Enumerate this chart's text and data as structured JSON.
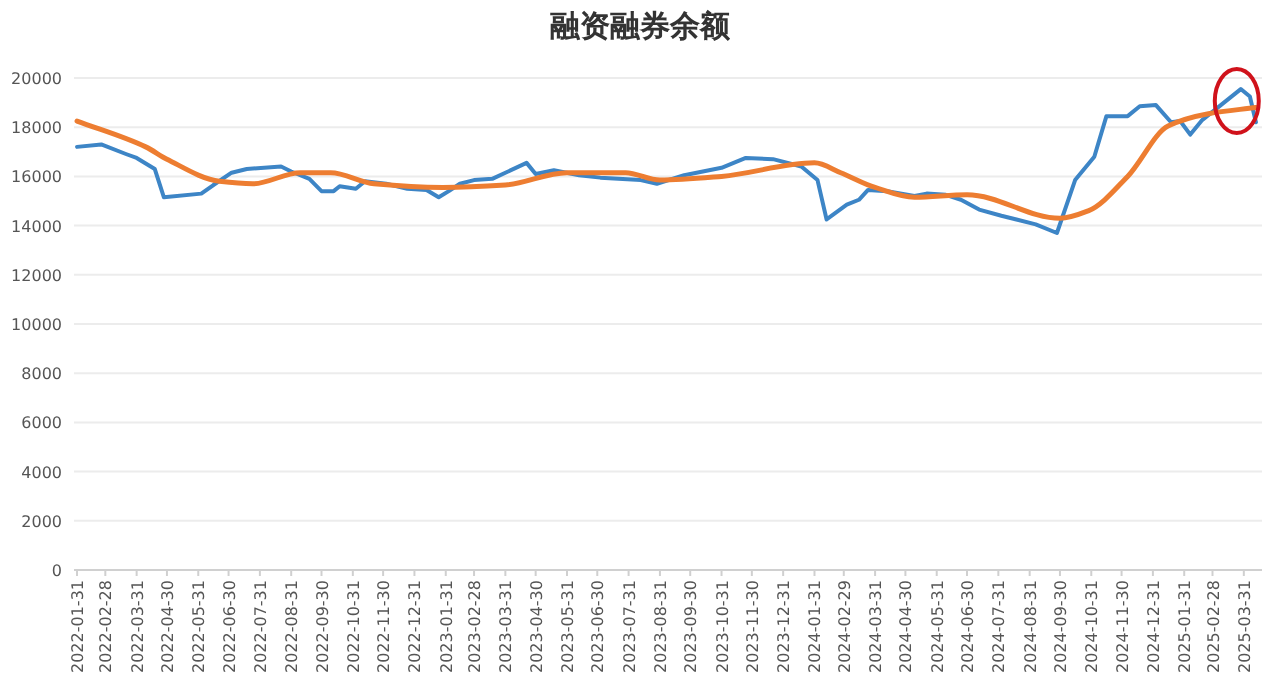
{
  "chart_data": {
    "type": "line",
    "title": "融资融券余额",
    "xlim": [
      "2022-01-28",
      "2025-04-18"
    ],
    "xticks": [
      "2022-01-31",
      "2022-02-28",
      "2022-03-31",
      "2022-04-30",
      "2022-05-31",
      "2022-06-30",
      "2022-07-31",
      "2022-08-31",
      "2022-09-30",
      "2022-10-31",
      "2022-11-30",
      "2022-12-31",
      "2023-01-31",
      "2023-02-28",
      "2023-03-31",
      "2023-04-30",
      "2023-05-31",
      "2023-06-30",
      "2023-07-31",
      "2023-08-31",
      "2023-09-30",
      "2023-10-31",
      "2023-11-30",
      "2023-12-31",
      "2024-01-31",
      "2024-02-29",
      "2024-03-31",
      "2024-04-30",
      "2024-05-31",
      "2024-06-30",
      "2024-07-31",
      "2024-08-31",
      "2024-09-30",
      "2024-10-31",
      "2024-11-30",
      "2024-12-31",
      "2025-01-31",
      "2025-02-28",
      "2025-03-31"
    ],
    "ylim": [
      0,
      20000
    ],
    "yticks": [
      0,
      2000,
      4000,
      6000,
      8000,
      10000,
      12000,
      14000,
      16000,
      18000,
      20000
    ],
    "grid": "y",
    "series": [
      {
        "color": "#3d85c6",
        "x": [
          "2022-01-31",
          "2022-02-24",
          "2022-03-21",
          "2022-03-31",
          "2022-04-18",
          "2022-04-27",
          "2022-06-03",
          "2022-06-15",
          "2022-07-03",
          "2022-07-18",
          "2022-08-21",
          "2022-08-31",
          "2022-09-18",
          "2022-09-30",
          "2022-10-12",
          "2022-10-18",
          "2022-11-03",
          "2022-11-12",
          "2022-12-03",
          "2022-12-24",
          "2023-01-12",
          "2023-01-24",
          "2023-02-03",
          "2023-02-14",
          "2023-02-28",
          "2023-03-18",
          "2023-04-21",
          "2023-04-30",
          "2023-05-18",
          "2023-06-12",
          "2023-07-03",
          "2023-08-12",
          "2023-08-28",
          "2023-09-24",
          "2023-10-31",
          "2023-11-24",
          "2023-12-21",
          "2024-01-18",
          "2024-02-03",
          "2024-02-12",
          "2024-03-03",
          "2024-03-15",
          "2024-03-24",
          "2024-04-12",
          "2024-05-09",
          "2024-05-21",
          "2024-06-09",
          "2024-06-24",
          "2024-07-12",
          "2024-08-03",
          "2024-09-06",
          "2024-09-27",
          "2024-10-15",
          "2024-11-03",
          "2024-11-15",
          "2024-12-06",
          "2024-12-18",
          "2025-01-03",
          "2025-01-18",
          "2025-01-27",
          "2025-02-06",
          "2025-02-18",
          "2025-03-28",
          "2025-04-06",
          "2025-04-12"
        ],
        "values": [
          17200,
          17300,
          16900,
          16750,
          16300,
          15150,
          15300,
          15650,
          16150,
          16300,
          16400,
          16200,
          15900,
          15400,
          15400,
          15600,
          15500,
          15800,
          15700,
          15500,
          15450,
          15150,
          15400,
          15700,
          15850,
          15900,
          16550,
          16100,
          16250,
          16050,
          15950,
          15850,
          15700,
          16050,
          16350,
          16750,
          16700,
          16400,
          15850,
          14250,
          14850,
          15050,
          15450,
          15400,
          15200,
          15300,
          15250,
          15050,
          14650,
          14400,
          14050,
          13700,
          15850,
          16800,
          18450,
          18450,
          18850,
          18900,
          18200,
          18250,
          17700,
          18300,
          19550,
          19250,
          18200
        ]
      },
      {
        "color": "#ed7d31",
        "x": [
          "2022-01-31",
          "2022-04-09",
          "2022-04-30",
          "2022-06-21",
          "2022-07-24",
          "2022-09-09",
          "2022-10-09",
          "2022-11-21",
          "2023-01-28",
          "2023-03-31",
          "2023-05-31",
          "2023-07-28",
          "2023-08-31",
          "2023-10-31",
          "2024-01-31",
          "2024-02-26",
          "2024-03-31",
          "2024-05-09",
          "2024-06-30",
          "2024-09-30",
          "2024-10-28",
          "2024-12-06",
          "2025-01-15",
          "2025-02-24",
          "2025-04-12"
        ],
        "values": [
          18250,
          17200,
          16700,
          15800,
          15700,
          16150,
          16150,
          15700,
          15550,
          15650,
          16150,
          16150,
          15850,
          16000,
          16550,
          16150,
          15550,
          15150,
          15250,
          14300,
          14600,
          16000,
          18050,
          18550,
          18800
        ]
      }
    ]
  }
}
